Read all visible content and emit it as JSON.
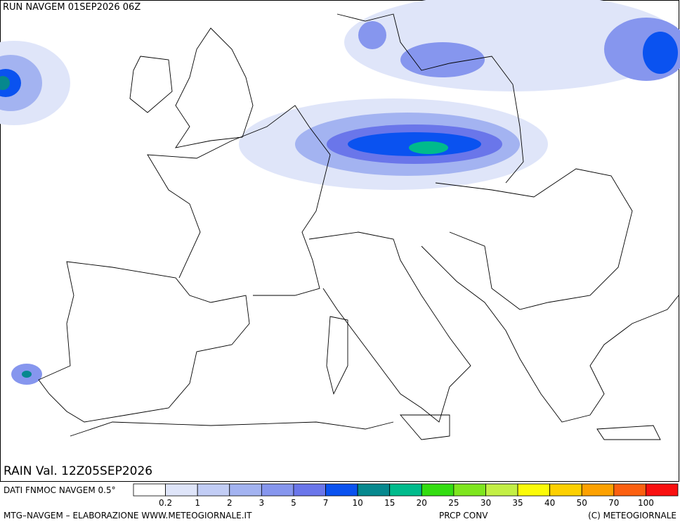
{
  "header": {
    "run": "RUN NAVGEM 01SEP2026 06Z",
    "field": "RAIN Val. 12Z05SEP2026"
  },
  "legend": {
    "source": "DATI FNMOC NAVGEM 0.5°",
    "labels": [
      "0.2",
      "1",
      "2",
      "3",
      "5",
      "7",
      "10",
      "15",
      "20",
      "25",
      "30",
      "35",
      "40",
      "50",
      "70",
      "100"
    ],
    "colors": [
      "#ffffff",
      "#dfe5f9",
      "#c2cdf5",
      "#a3b3f1",
      "#8696ee",
      "#6a76ea",
      "#0a52f0",
      "#06888e",
      "#00bb8c",
      "#33dd11",
      "#7ee61e",
      "#c3ef45",
      "#fbfb08",
      "#fdd000",
      "#fda100",
      "#fc6010",
      "#f91010"
    ]
  },
  "footer": {
    "credit": "MTG–NAVGEM – ELABORAZIONE WWW.METEOGIORNALE.IT",
    "product": "PRCP CONV",
    "copyright": "(C) METEOGIORNALE"
  }
}
